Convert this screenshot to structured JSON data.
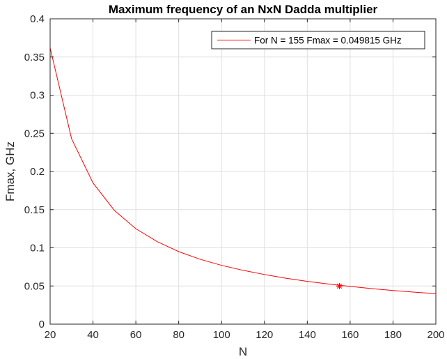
{
  "chart_data": {
    "type": "line",
    "title": "Maximum frequency of an NxN Dadda multiplier",
    "xlabel": "N",
    "ylabel": "Fmax, GHz",
    "xlim": [
      20,
      200
    ],
    "ylim": [
      0,
      0.4
    ],
    "xticks": [
      20,
      40,
      60,
      80,
      100,
      120,
      140,
      160,
      180,
      200
    ],
    "yticks": [
      0,
      0.05,
      0.1,
      0.15,
      0.2,
      0.25,
      0.3,
      0.35,
      0.4
    ],
    "xtick_labels": [
      "20",
      "40",
      "60",
      "80",
      "100",
      "120",
      "140",
      "160",
      "180",
      "200"
    ],
    "ytick_labels": [
      "0",
      "0.05",
      "0.1",
      "0.15",
      "0.2",
      "0.25",
      "0.3",
      "0.35",
      "0.4"
    ],
    "grid": true,
    "legend_position": "top-right",
    "series": [
      {
        "name": "For N = 155 Fmax = 0.049815 GHz",
        "color": "#ff0000",
        "x": [
          20,
          30,
          40,
          50,
          60,
          70,
          80,
          90,
          100,
          110,
          120,
          130,
          140,
          150,
          160,
          170,
          180,
          190,
          200
        ],
        "y": [
          0.362,
          0.243,
          0.185,
          0.149,
          0.125,
          0.108,
          0.095,
          0.085,
          0.077,
          0.0705,
          0.065,
          0.0602,
          0.0561,
          0.0525,
          0.0494,
          0.0466,
          0.0441,
          0.0419,
          0.0399
        ]
      }
    ],
    "marker": {
      "x": 155,
      "y": 0.049815,
      "symbol": "asterisk",
      "color": "#ff0000"
    }
  }
}
